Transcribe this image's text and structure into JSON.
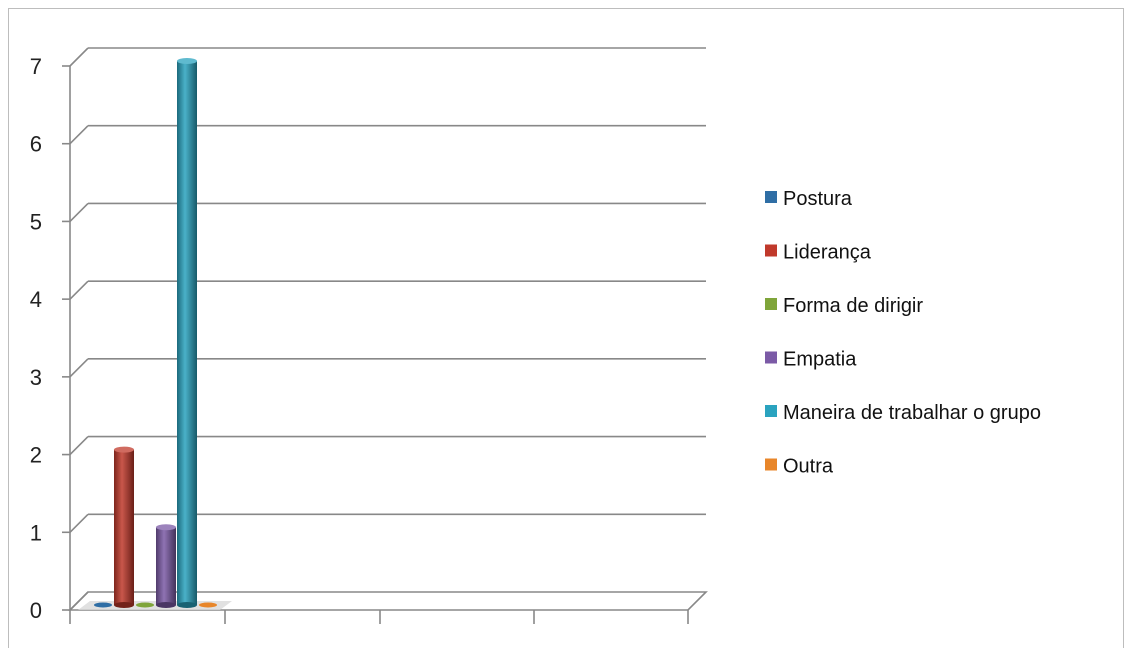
{
  "chart_data": {
    "type": "bar",
    "style": "3d-cylinder",
    "categories": [
      ""
    ],
    "series": [
      {
        "name": "Postura",
        "values": [
          0
        ],
        "color": "#2f6ea5"
      },
      {
        "name": "Liderança",
        "values": [
          2
        ],
        "color": "#c0392b"
      },
      {
        "name": "Forma de dirigir",
        "values": [
          0
        ],
        "color": "#7fa53a"
      },
      {
        "name": "Empatia",
        "values": [
          1
        ],
        "color": "#7b5aa6"
      },
      {
        "name": "Maneira de trabalhar o grupo",
        "values": [
          7
        ],
        "color": "#2aa3bf"
      },
      {
        "name": "Outra",
        "values": [
          0
        ],
        "color": "#e8862a"
      }
    ],
    "yticks": [
      "0",
      "1",
      "2",
      "3",
      "4",
      "5",
      "6",
      "7"
    ],
    "ylim": [
      0,
      7
    ],
    "grid": true,
    "legend_position": "right"
  }
}
